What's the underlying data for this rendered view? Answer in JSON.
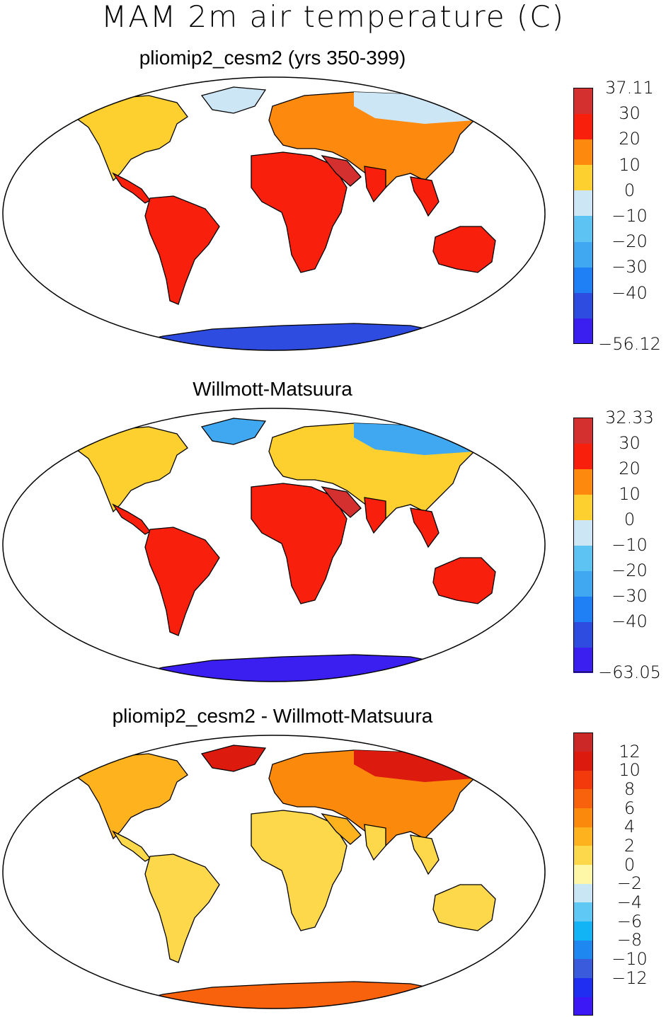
{
  "title": "MAM 2m air temperature (C)",
  "panels": [
    {
      "title": "pliomip2_cesm2 (yrs 350-399)",
      "colorbar": {
        "colors": [
          "#3b1ff0",
          "#2e4de0",
          "#1f7ff5",
          "#3fa8f0",
          "#5cc3f2",
          "#cde6f5",
          "#fdd030",
          "#fd8a0f",
          "#f81f0d",
          "#d43030"
        ],
        "labels": [
          "37.11",
          "30",
          "20",
          "10",
          "0",
          "−10",
          "−20",
          "−30",
          "−40",
          "−56.12"
        ]
      }
    },
    {
      "title": "Willmott-Matsuura",
      "colorbar": {
        "colors": [
          "#3b1ff0",
          "#2e4de0",
          "#1f7ff5",
          "#3fa8f0",
          "#5cc3f2",
          "#cde6f5",
          "#fdd030",
          "#fd8a0f",
          "#f81f0d",
          "#d43030"
        ],
        "labels": [
          "32.33",
          "30",
          "20",
          "10",
          "0",
          "−10",
          "−20",
          "−30",
          "−40",
          "−63.05"
        ]
      }
    },
    {
      "title": "pliomip2_cesm2 - Willmott-Matsuura",
      "colorbar": {
        "colors": [
          "#3b18f5",
          "#1f2ef0",
          "#3a5cdc",
          "#1e88f0",
          "#12b4f5",
          "#5fc8f5",
          "#c8e6f3",
          "#fff7a8",
          "#fdd84a",
          "#fdb21e",
          "#fb8a0c",
          "#f8620c",
          "#f23a0c",
          "#dc1a0e",
          "#cc2828"
        ],
        "labels": [
          "12",
          "10",
          "8",
          "6",
          "4",
          "2",
          "0",
          "−2",
          "−4",
          "−6",
          "−8",
          "−10",
          "−12"
        ]
      }
    }
  ]
}
